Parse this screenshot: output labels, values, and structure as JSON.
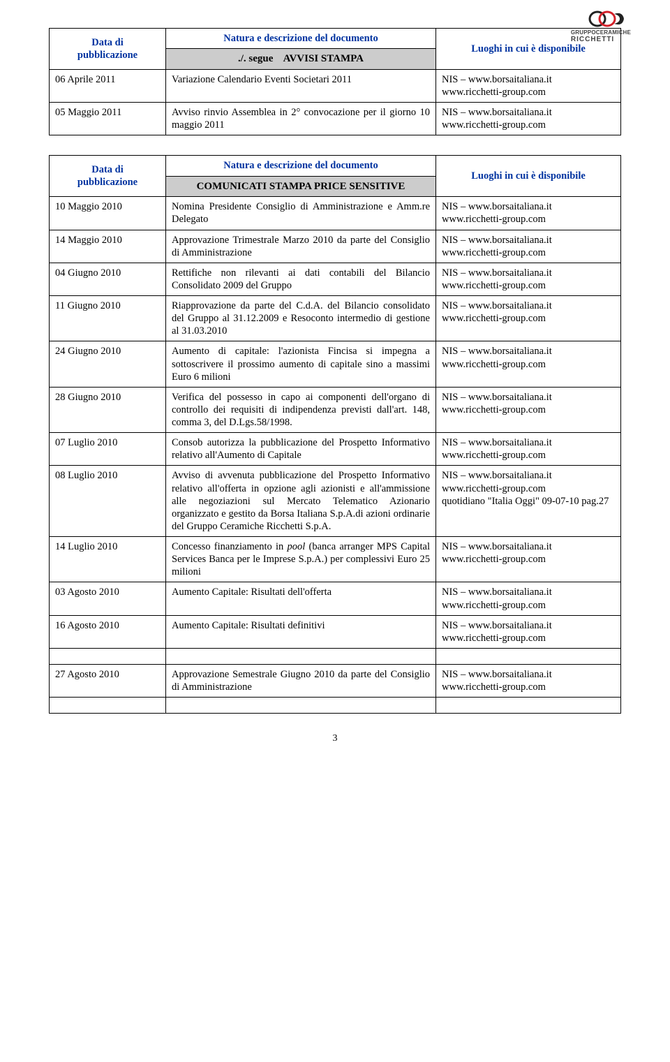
{
  "logo": {
    "brand_line": "GRUPPOCERAMICHE",
    "brand_name": "RICCHETTI",
    "accent_red": "#d12029",
    "accent_dark": "#222"
  },
  "header": {
    "col1": "Data di\npubblicazione",
    "col2": "Natura e descrizione del documento",
    "col3": "Luoghi in cui è disponibile"
  },
  "table1": {
    "title": "./. segue    AVVISI STAMPA",
    "rows": [
      {
        "date": "06 Aprile 2011",
        "desc": "Variazione Calendario Eventi Societari 2011",
        "loc": "NIS – www.borsaitaliana.it\nwww.ricchetti-group.com"
      },
      {
        "date": "05 Maggio 2011",
        "desc": "Avviso rinvio Assemblea in 2° convocazione per il giorno 10 maggio 2011",
        "loc": "NIS – www.borsaitaliana.it\nwww.ricchetti-group.com"
      }
    ]
  },
  "table2": {
    "title": "COMUNICATI STAMPA PRICE SENSITIVE",
    "default_loc": "NIS – www.borsaitaliana.it\nwww.ricchetti-group.com",
    "rows": [
      {
        "date": "10 Maggio 2010",
        "desc": "Nomina Presidente Consiglio di Amministrazione e Amm.re Delegato"
      },
      {
        "date": "14 Maggio 2010",
        "desc": "Approvazione Trimestrale Marzo 2010 da parte del Consiglio di Amministrazione"
      },
      {
        "date": "04 Giugno 2010",
        "desc": "Rettifiche non rilevanti ai dati contabili del Bilancio Consolidato 2009 del Gruppo"
      },
      {
        "date": "11 Giugno 2010",
        "desc": "Riapprovazione da parte del C.d.A. del Bilancio consolidato del Gruppo al 31.12.2009 e Resoconto intermedio di gestione al 31.03.2010"
      },
      {
        "date": "24 Giugno 2010",
        "desc": "Aumento di capitale: l'azionista Fincisa si impegna a sottoscrivere il prossimo aumento di capitale sino a massimi Euro 6 milioni"
      },
      {
        "date": "28 Giugno 2010",
        "desc": "Verifica del possesso in capo ai componenti dell'organo di controllo dei requisiti di indipendenza previsti dall'art. 148, comma 3, del D.Lgs.58/1998."
      },
      {
        "date": "07 Luglio 2010",
        "desc": "Consob autorizza la pubblicazione del Prospetto Informativo relativo all'Aumento di Capitale"
      },
      {
        "date": "08 Luglio 2010",
        "desc": "Avviso di avvenuta pubblicazione del Prospetto Informativo relativo all'offerta in opzione agli azionisti e all'ammissione alle negoziazioni sul Mercato Telematico Azionario organizzato e gestito da Borsa Italiana S.p.A.di azioni ordinarie del Gruppo Ceramiche Ricchetti S.p.A.",
        "loc": "NIS – www.borsaitaliana.it\nwww.ricchetti-group.com\nquotidiano \"Italia Oggi\" 09-07-10 pag.27"
      },
      {
        "date": " 14  Luglio 2010",
        "desc": "Concesso finanziamento in pool (banca arranger MPS Capital Services Banca per le Imprese S.p.A.) per complessivi Euro 25 milioni"
      },
      {
        "date": "03 Agosto 2010",
        "desc": "Aumento Capitale: Risultati dell'offerta"
      },
      {
        "date": "16 Agosto 2010",
        "desc": "Aumento Capitale: Risultati definitivi"
      }
    ],
    "rows_after_gap": [
      {
        "date": "27 Agosto 2010",
        "desc": "Approvazione Semestrale Giugno 2010 da parte del Consiglio di Amministrazione"
      }
    ]
  },
  "italic_word": "pool",
  "page_number": "3"
}
